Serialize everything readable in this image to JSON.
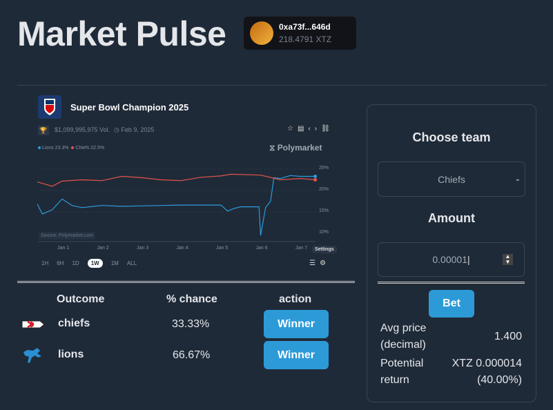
{
  "header": {
    "title": "Market Pulse"
  },
  "wallet": {
    "address": "0xa73f...646d",
    "balance": "218.4791 XTZ"
  },
  "market": {
    "title": "Super Bowl Champion 2025",
    "volume": "$1,099,995,975 Vol.",
    "date": "Feb 9, 2025",
    "brand": "Polymarket",
    "source": "Source: Polymarket.com",
    "legend": [
      {
        "label": "Lions 23.3%",
        "color": "#2d9cdb"
      },
      {
        "label": "Chiefs 22.5%",
        "color": "#e5534b"
      }
    ],
    "ranges": [
      "1H",
      "6H",
      "1D",
      "1W",
      "1M",
      "ALL"
    ],
    "active_range": "1W",
    "tooltip": "Settings",
    "icons": [
      "trophy-icon",
      "clock-icon",
      "star-icon",
      "document-icon",
      "code-icon",
      "link-icon",
      "sliders-icon",
      "gear-icon"
    ]
  },
  "chart_data": {
    "type": "line",
    "x_ticks": [
      "Jan 1",
      "Jan 2",
      "Jan 3",
      "Jan 4",
      "Jan 5",
      "Jan 6",
      "Jan 7"
    ],
    "y_ticks": [
      "25%",
      "20%",
      "15%",
      "10%"
    ],
    "ylim": [
      9,
      25.5
    ],
    "grid": true,
    "series": [
      {
        "name": "Lions",
        "color": "#2d9cdb",
        "x": [
          "Dec 31 09:00",
          "Dec 31 12:00",
          "Dec 31 18:00",
          "Jan 1 00:00",
          "Jan 1 06:00",
          "Jan 1 12:00",
          "Jan 2 00:00",
          "Jan 2 12:00",
          "Jan 3 00:00",
          "Jan 3 12:00",
          "Jan 4 00:00",
          "Jan 4 12:00",
          "Jan 5 00:00",
          "Jan 5 04:00",
          "Jan 5 08:00",
          "Jan 5 12:00",
          "Jan 5 23:00",
          "Jan 6 00:00",
          "Jan 6 03:00",
          "Jan 6 06:00",
          "Jan 6 08:00",
          "Jan 6 12:00",
          "Jan 6 18:00",
          "Jan 7 00:00",
          "Jan 7 09:00"
        ],
        "values": [
          16.8,
          14.5,
          15.5,
          18.0,
          16.5,
          16.0,
          16.5,
          16.3,
          16.4,
          16.5,
          16.6,
          16.6,
          16.6,
          15.2,
          15.8,
          16.2,
          16.2,
          9.5,
          16.0,
          17.5,
          23.0,
          22.8,
          23.5,
          23.3,
          23.3
        ]
      },
      {
        "name": "Chiefs",
        "color": "#e5534b",
        "x": [
          "Dec 31 09:00",
          "Dec 31 18:00",
          "Jan 1 00:00",
          "Jan 1 12:00",
          "Jan 2 00:00",
          "Jan 2 12:00",
          "Jan 3 00:00",
          "Jan 3 12:00",
          "Jan 4 00:00",
          "Jan 4 12:00",
          "Jan 5 00:00",
          "Jan 5 06:00",
          "Jan 6 00:00",
          "Jan 6 12:00",
          "Jan 7 00:00",
          "Jan 7 09:00"
        ],
        "values": [
          22.0,
          21.0,
          22.2,
          22.5,
          22.3,
          23.3,
          23.0,
          22.5,
          22.3,
          23.1,
          23.4,
          23.8,
          23.6,
          22.5,
          22.8,
          22.5
        ]
      }
    ]
  },
  "table": {
    "headers": [
      "Outcome",
      "% chance",
      "action"
    ],
    "rows": [
      {
        "name": "chiefs",
        "chance": "33.33%",
        "action": "Winner"
      },
      {
        "name": "lions",
        "chance": "66.67%",
        "action": "Winner"
      }
    ]
  },
  "panel": {
    "choose_label": "Choose team",
    "team_value": "Chiefs",
    "amount_label": "Amount",
    "amount_value": "0.00001",
    "bet_label": "Bet",
    "avg_price_label": "Avg price (decimal)",
    "avg_price_value": "1.400",
    "return_label": "Potential return",
    "return_value": "XTZ 0.000014 (40.00%)"
  }
}
